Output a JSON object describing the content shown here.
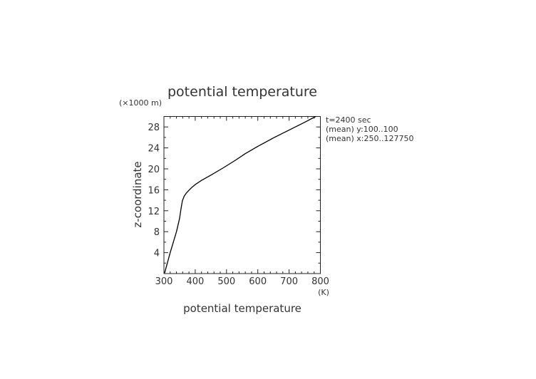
{
  "chart_data": {
    "type": "line",
    "title": "potential temperature",
    "xlabel": "potential temperature",
    "xunit": "(K)",
    "ylabel": "z-coordinate",
    "yunit": "(×1000 m)",
    "xlim": [
      300,
      800
    ],
    "ylim": [
      0,
      30
    ],
    "xticks": [
      300,
      400,
      500,
      600,
      700,
      800
    ],
    "yticks": [
      4,
      8,
      12,
      16,
      20,
      24,
      28
    ],
    "grid": false,
    "annotations": [
      "t=2400 sec",
      "(mean) y:100..100",
      "(mean) x:250..127750"
    ],
    "series": [
      {
        "color": "#000000",
        "x": [
          302,
          320,
          340,
          350,
          355,
          359,
          365,
          372,
          380,
          390,
          400,
          420,
          450,
          490,
          530,
          560,
          600,
          650,
          700,
          750,
          785
        ],
        "y": [
          0.1,
          4,
          8,
          10.5,
          12.5,
          13.9,
          14.8,
          15.4,
          15.9,
          16.5,
          17.0,
          17.8,
          18.8,
          20.2,
          21.7,
          22.9,
          24.3,
          25.9,
          27.4,
          28.9,
          30
        ]
      }
    ]
  }
}
